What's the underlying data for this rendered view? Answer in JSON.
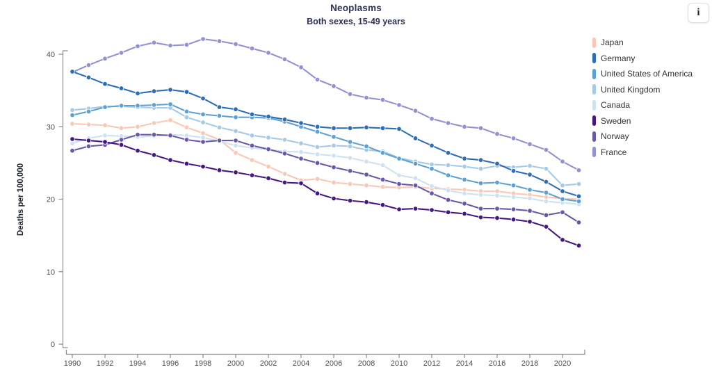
{
  "header": {
    "title": "Neoplasms",
    "subtitle": "Both sexes, 15-49 years",
    "info_button_glyph": "i"
  },
  "chart_data": {
    "type": "line",
    "title": "Neoplasms",
    "subtitle": "Both sexes, 15-49 years",
    "xlabel": "",
    "ylabel": "Deaths per 100,000",
    "grid": false,
    "legend_position": "right",
    "xlim": [
      1990,
      2021
    ],
    "ylim": [
      0,
      43
    ],
    "x_ticks": [
      1990,
      1992,
      1994,
      1996,
      1998,
      2000,
      2002,
      2004,
      2006,
      2008,
      2010,
      2012,
      2014,
      2016,
      2018,
      2020
    ],
    "y_ticks": [
      0,
      10,
      20,
      30,
      40
    ],
    "x": [
      1990,
      1991,
      1992,
      1993,
      1994,
      1995,
      1996,
      1997,
      1998,
      1999,
      2000,
      2001,
      2002,
      2003,
      2004,
      2005,
      2006,
      2007,
      2008,
      2009,
      2010,
      2011,
      2012,
      2013,
      2014,
      2015,
      2016,
      2017,
      2018,
      2019,
      2020,
      2021
    ],
    "series": [
      {
        "name": "Japan",
        "color": "#F9C7B4",
        "values": [
          30.4,
          30.3,
          30.2,
          29.8,
          30.0,
          30.5,
          30.9,
          29.9,
          29.1,
          28.2,
          26.4,
          25.4,
          24.5,
          23.5,
          22.6,
          22.8,
          22.3,
          22.1,
          21.9,
          21.7,
          21.6,
          21.7,
          21.5,
          21.4,
          21.3,
          21.1,
          21.1,
          20.8,
          20.6,
          20.3,
          20.1,
          20.0
        ]
      },
      {
        "name": "Germany",
        "color": "#2E6DB4",
        "values": [
          37.6,
          36.8,
          35.9,
          35.3,
          34.6,
          34.9,
          35.1,
          34.8,
          33.9,
          32.7,
          32.4,
          31.7,
          31.4,
          31.0,
          30.5,
          30.0,
          29.8,
          29.8,
          29.9,
          29.8,
          29.7,
          28.4,
          27.4,
          26.4,
          25.6,
          25.4,
          24.9,
          23.9,
          23.4,
          22.4,
          21.1,
          20.4
        ]
      },
      {
        "name": "United States of America",
        "color": "#5DA0D2",
        "values": [
          31.6,
          32.1,
          32.7,
          32.9,
          32.9,
          33.0,
          33.1,
          32.1,
          31.7,
          31.5,
          31.3,
          31.3,
          31.2,
          30.7,
          30.0,
          29.3,
          28.6,
          27.9,
          27.3,
          26.4,
          25.6,
          24.9,
          24.2,
          23.3,
          22.7,
          22.2,
          22.3,
          21.9,
          21.3,
          20.9,
          20.0,
          19.7
        ]
      },
      {
        "name": "United Kingdom",
        "color": "#A5C9E6",
        "values": [
          32.3,
          32.5,
          32.8,
          32.8,
          32.7,
          32.6,
          32.6,
          31.3,
          30.6,
          29.9,
          29.4,
          28.8,
          28.5,
          28.2,
          27.7,
          27.2,
          27.4,
          27.3,
          26.8,
          26.6,
          25.7,
          25.2,
          24.8,
          24.7,
          24.5,
          24.2,
          24.6,
          24.4,
          24.6,
          24.2,
          21.9,
          22.1
        ]
      },
      {
        "name": "Canada",
        "color": "#CCE1F2",
        "values": [
          27.7,
          28.4,
          28.8,
          28.7,
          28.6,
          28.7,
          28.9,
          28.8,
          28.5,
          28.0,
          27.4,
          27.1,
          26.8,
          26.6,
          26.5,
          26.2,
          26.0,
          25.7,
          25.2,
          24.7,
          23.3,
          22.9,
          21.8,
          21.2,
          20.8,
          20.6,
          20.5,
          20.3,
          20.1,
          19.7,
          19.5,
          19.3
        ]
      },
      {
        "name": "Sweden",
        "color": "#45187F",
        "values": [
          28.3,
          28.1,
          27.9,
          27.5,
          26.7,
          26.1,
          25.4,
          24.9,
          24.5,
          24.0,
          23.7,
          23.3,
          22.9,
          22.3,
          22.2,
          20.8,
          20.1,
          19.8,
          19.6,
          19.2,
          18.6,
          18.7,
          18.5,
          18.2,
          18.0,
          17.5,
          17.4,
          17.2,
          16.9,
          16.2,
          14.4,
          13.6
        ]
      },
      {
        "name": "Norway",
        "color": "#6A58A7",
        "values": [
          26.7,
          27.3,
          27.5,
          28.2,
          28.9,
          28.9,
          28.8,
          28.2,
          27.9,
          28.1,
          28.1,
          27.4,
          26.9,
          26.3,
          25.6,
          25.0,
          24.4,
          23.9,
          23.4,
          22.7,
          22.1,
          21.9,
          20.8,
          19.9,
          19.4,
          18.7,
          18.7,
          18.6,
          18.4,
          17.8,
          18.2,
          16.8
        ]
      },
      {
        "name": "France",
        "color": "#9390D4",
        "values": [
          37.5,
          38.5,
          39.4,
          40.2,
          41.1,
          41.6,
          41.2,
          41.3,
          42.1,
          41.8,
          41.4,
          40.8,
          40.2,
          39.3,
          38.2,
          36.5,
          35.6,
          34.5,
          34.0,
          33.7,
          33.0,
          32.2,
          31.1,
          30.5,
          30.0,
          29.8,
          29.0,
          28.4,
          27.6,
          26.8,
          25.2,
          24.0
        ]
      }
    ],
    "draw_order": [
      "France",
      "Japan",
      "Canada",
      "United Kingdom",
      "United States of America",
      "Norway",
      "Sweden",
      "Germany"
    ]
  }
}
